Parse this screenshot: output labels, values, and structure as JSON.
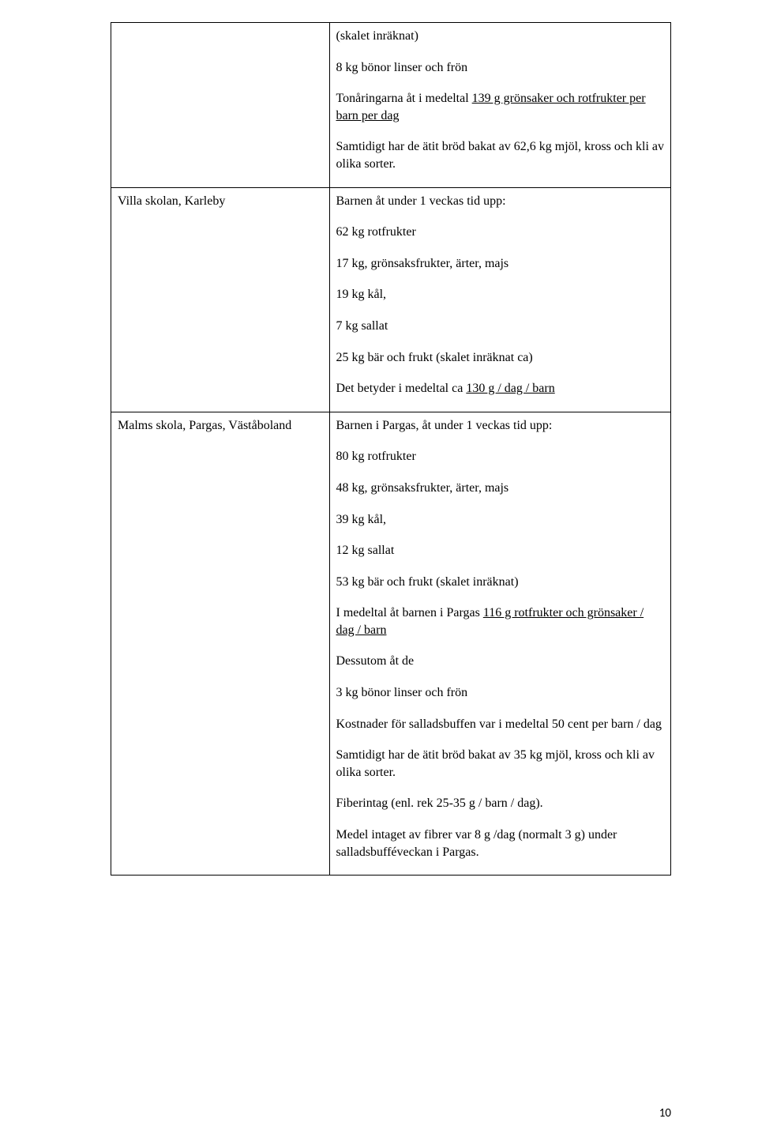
{
  "pageNumber": "10",
  "rows": [
    {
      "left": "",
      "right": {
        "lines": [
          {
            "text": "(skalet inräknat)"
          },
          {
            "text": "8 kg bönor linser och frön"
          },
          {
            "parts": [
              {
                "t": "Tonåringarna åt i medeltal "
              },
              {
                "t": "139 g grönsaker och  rotfrukter per barn per dag",
                "u": true
              }
            ]
          },
          {
            "text": "Samtidigt har de ätit bröd bakat av 62,6 kg mjöl, kross och kli av olika sorter."
          }
        ]
      }
    },
    {
      "left": "Villa skolan, Karleby",
      "right": {
        "lines": [
          {
            "text": "Barnen åt under 1 veckas tid upp:"
          },
          {
            "text": "62 kg rotfrukter"
          },
          {
            "text": "17 kg, grönsaksfrukter, ärter, majs"
          },
          {
            "text": "19 kg kål,"
          },
          {
            "text": "7 kg sallat"
          },
          {
            "text": "25 kg bär och frukt (skalet inräknat ca)"
          },
          {
            "parts": [
              {
                "t": "Det betyder i medeltal ca "
              },
              {
                "t": "130 g / dag / barn",
                "u": true
              }
            ]
          }
        ]
      }
    },
    {
      "left": "Malms skola, Pargas, Väståboland",
      "right": {
        "lines": [
          {
            "text": "Barnen i Pargas, åt under 1 veckas tid upp:"
          },
          {
            "text": "80 kg rotfrukter"
          },
          {
            "text": "48 kg, grönsaksfrukter, ärter, majs"
          },
          {
            "text": "39 kg kål,"
          },
          {
            "text": "12 kg sallat"
          },
          {
            "text": "53 kg bär och frukt (skalet inräknat)"
          },
          {
            "parts": [
              {
                "t": "I medeltal åt barnen i Pargas "
              },
              {
                "t": "116 g rotfrukter och grönsaker / dag / barn",
                "u": true
              }
            ]
          },
          {
            "text": "Dessutom åt de"
          },
          {
            "text": "3 kg bönor linser och frön"
          },
          {
            "text": "Kostnader för salladsbuffen var i medeltal 50 cent per barn / dag"
          },
          {
            "text": "Samtidigt har de ätit bröd bakat av 35 kg mjöl, kross och kli av olika sorter."
          },
          {
            "text": "Fiberintag (enl. rek 25-35 g / barn / dag)."
          },
          {
            "text": "Medel intaget av fibrer var 8 g /dag (normalt 3 g) under salladsbufféveckan i Pargas."
          }
        ]
      }
    }
  ]
}
